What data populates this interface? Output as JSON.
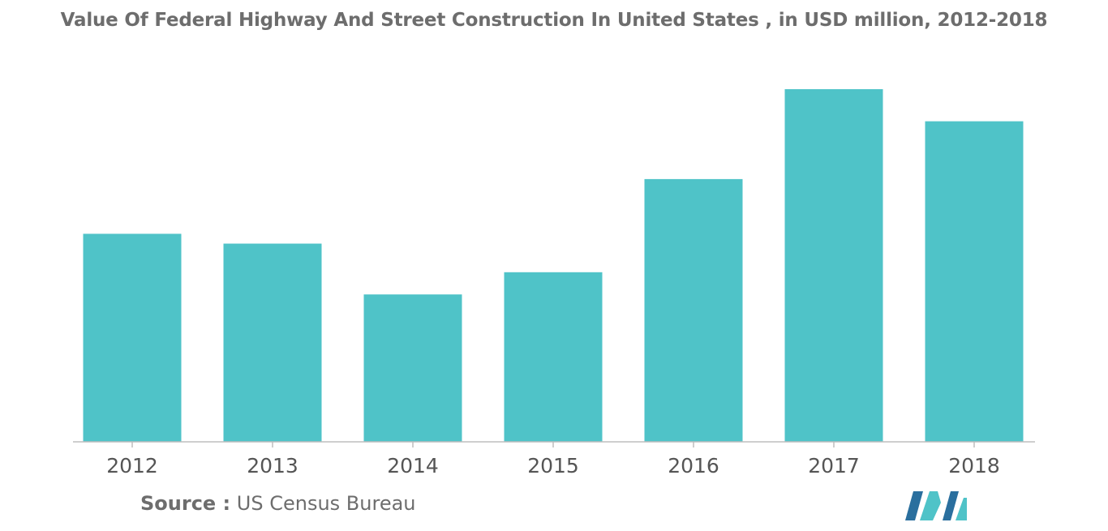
{
  "title": "Value Of Federal Highway And Street Construction In United States , in USD million, 2012-2018",
  "source": {
    "label": "Source :",
    "text": "US Census Bureau"
  },
  "colors": {
    "bar": "#4fc3c8",
    "axis": "#bdbdbd",
    "title": "#6d6d6d",
    "logo_dark": "#2a6f9e",
    "logo_light": "#4fc3c8"
  },
  "logo_icon": "mordor-intelligence-logo-icon",
  "chart_data": {
    "type": "bar",
    "title": "Value Of Federal Highway And Street Construction In United States , in USD million, 2012-2018",
    "categories": [
      "2012",
      "2013",
      "2014",
      "2015",
      "2016",
      "2017",
      "2018"
    ],
    "values": [
      590,
      562,
      418,
      481,
      745,
      1000,
      909
    ],
    "xlabel": "",
    "ylabel": "",
    "ylim": [
      0,
      1000
    ],
    "grid": false,
    "legend": "none",
    "y_axis_visible": false
  }
}
